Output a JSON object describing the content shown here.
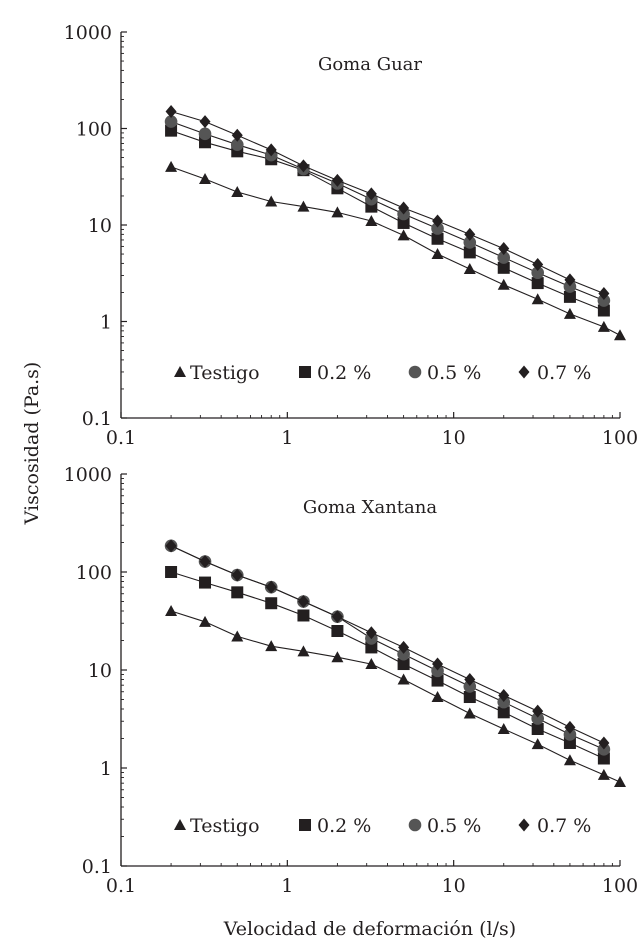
{
  "figure": {
    "ylabel": "Viscosidad (Pa.s)",
    "xlabel": "Velocidad de deformación (l/s)"
  },
  "chart_data": [
    {
      "type": "scatter",
      "title": "Goma Guar",
      "x_scale": "log",
      "y_scale": "log",
      "xlim": [
        0.1,
        100
      ],
      "ylim": [
        0.1,
        1000
      ],
      "xticks": [
        "0.1",
        "1",
        "10",
        "100"
      ],
      "yticks": [
        "0.1",
        "1",
        "10",
        "100",
        "1000"
      ],
      "legend_position": "bottom",
      "series": [
        {
          "name": "Testigo",
          "marker": "triangle",
          "x": [
            0.2,
            0.32,
            0.5,
            0.8,
            1.25,
            2,
            3.2,
            5,
            8,
            12.5,
            20,
            32,
            50,
            80,
            100
          ],
          "y": [
            40,
            30,
            22,
            17.5,
            15.5,
            13.5,
            11,
            7.8,
            5,
            3.5,
            2.4,
            1.7,
            1.2,
            0.88,
            0.72
          ]
        },
        {
          "name": "0.2 %",
          "marker": "square",
          "x": [
            0.2,
            0.32,
            0.5,
            0.8,
            1.25,
            2,
            3.2,
            5,
            8,
            12.5,
            20,
            32,
            50,
            80
          ],
          "y": [
            95,
            72,
            58,
            48,
            37,
            24,
            15.5,
            10.5,
            7.2,
            5.2,
            3.6,
            2.5,
            1.8,
            1.3
          ]
        },
        {
          "name": "0.5 %",
          "marker": "circle",
          "x": [
            0.2,
            0.32,
            0.5,
            0.8,
            1.25,
            2,
            3.2,
            5,
            8,
            12.5,
            20,
            32,
            50,
            80
          ],
          "y": [
            118,
            88,
            68,
            53,
            38,
            27,
            18.5,
            13,
            9.2,
            6.6,
            4.6,
            3.2,
            2.3,
            1.65
          ]
        },
        {
          "name": "0.7 %",
          "marker": "diamond",
          "x": [
            0.2,
            0.32,
            0.5,
            0.8,
            1.25,
            2,
            3.2,
            5,
            8,
            12.5,
            20,
            32,
            50,
            80
          ],
          "y": [
            150,
            118,
            85,
            60,
            41,
            29,
            21,
            15,
            11,
            8,
            5.7,
            3.9,
            2.7,
            1.95
          ]
        }
      ]
    },
    {
      "type": "scatter",
      "title": "Goma Xantana",
      "x_scale": "log",
      "y_scale": "log",
      "xlim": [
        0.1,
        100
      ],
      "ylim": [
        0.1,
        1000
      ],
      "xticks": [
        "0.1",
        "1",
        "10",
        "100"
      ],
      "yticks": [
        "0.1",
        "1",
        "10",
        "100",
        "1000"
      ],
      "legend_position": "bottom",
      "series": [
        {
          "name": "Testigo",
          "marker": "triangle",
          "x": [
            0.2,
            0.32,
            0.5,
            0.8,
            1.25,
            2,
            3.2,
            5,
            8,
            12.5,
            20,
            32,
            50,
            80,
            100
          ],
          "y": [
            40,
            31,
            22,
            17.5,
            15.5,
            13.5,
            11.5,
            8,
            5.3,
            3.6,
            2.5,
            1.75,
            1.2,
            0.85,
            0.72
          ]
        },
        {
          "name": "0.2 %",
          "marker": "square",
          "x": [
            0.2,
            0.32,
            0.5,
            0.8,
            1.25,
            2,
            3.2,
            5,
            8,
            12.5,
            20,
            32,
            50,
            80
          ],
          "y": [
            100,
            78,
            62,
            48,
            36,
            25,
            17,
            11.5,
            7.8,
            5.3,
            3.7,
            2.5,
            1.8,
            1.25
          ]
        },
        {
          "name": "0.5 %",
          "marker": "circle",
          "x": [
            0.2,
            0.32,
            0.5,
            0.8,
            1.25,
            2,
            3.2,
            5,
            8,
            12.5,
            20,
            32,
            50,
            80
          ],
          "y": [
            185,
            128,
            93,
            70,
            50,
            35,
            21,
            14.5,
            9.8,
            6.8,
            4.7,
            3.2,
            2.2,
            1.55
          ]
        },
        {
          "name": "0.7 %",
          "marker": "diamond",
          "x": [
            0.2,
            0.32,
            0.5,
            0.8,
            1.25,
            2,
            3.2,
            5,
            8,
            12.5,
            20,
            32,
            50,
            80
          ],
          "y": [
            185,
            128,
            93,
            70,
            50,
            35,
            24,
            17,
            11.5,
            8,
            5.5,
            3.8,
            2.6,
            1.8
          ]
        }
      ]
    }
  ]
}
